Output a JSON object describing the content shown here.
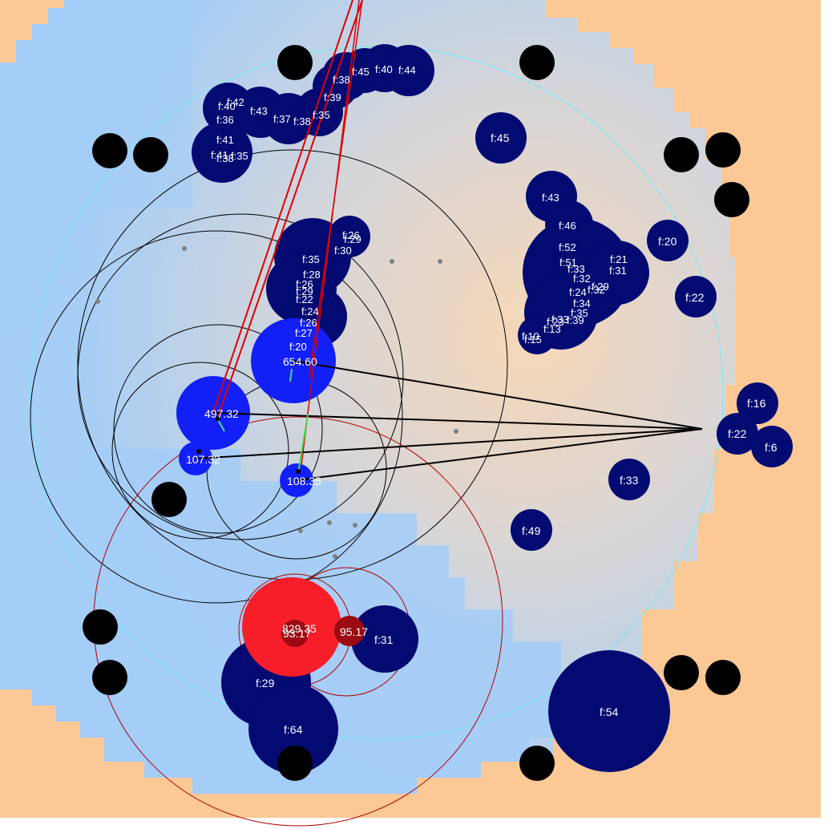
{
  "colors": {
    "background": "#fcc896",
    "map_light": "#a6cef7",
    "map_mid": "#c9d5e6",
    "boundary": "#7ee8f0",
    "food": "#030a72",
    "player": "#1220f7",
    "enemy": "#f71e2a",
    "enemy_small": "#9a0a10",
    "virus": "#000000",
    "pellet": "#808080"
  },
  "food": [
    {
      "label": "f:42"
    },
    {
      "label": "f:40"
    },
    {
      "label": "f:36"
    },
    {
      "label": "f:43"
    },
    {
      "label": "f:37"
    },
    {
      "label": "f:38"
    },
    {
      "label": "f:35"
    },
    {
      "label": "f:39"
    },
    {
      "label": "f:38"
    },
    {
      "label": "f:45"
    },
    {
      "label": "f:40"
    },
    {
      "label": "f:44"
    },
    {
      "label": "f:41"
    },
    {
      "label": "f:41"
    },
    {
      "label": "f:35"
    },
    {
      "label": "f:38"
    },
    {
      "label": "f:45"
    },
    {
      "label": "f:43"
    },
    {
      "label": "f:46"
    },
    {
      "label": "f:52"
    },
    {
      "label": "f:51"
    },
    {
      "label": "f:21"
    },
    {
      "label": "f:31"
    },
    {
      "label": "f:33"
    },
    {
      "label": "f:32"
    },
    {
      "label": "f:29"
    },
    {
      "label": "f:32"
    },
    {
      "label": "f:24"
    },
    {
      "label": "f:34"
    },
    {
      "label": "f:35"
    },
    {
      "label": "f:33"
    },
    {
      "label": "f:39"
    },
    {
      "label": "f:23"
    },
    {
      "label": "f:13"
    },
    {
      "label": "f:10"
    },
    {
      "label": "f:15"
    },
    {
      "label": "f:20"
    },
    {
      "label": "f:22"
    },
    {
      "label": "f:26"
    },
    {
      "label": "f:29"
    },
    {
      "label": "f:30"
    },
    {
      "label": "f:35"
    },
    {
      "label": "f:28"
    },
    {
      "label": "f:26"
    },
    {
      "label": "f:29"
    },
    {
      "label": "f:22"
    },
    {
      "label": "f:24"
    },
    {
      "label": "f:26"
    },
    {
      "label": "f:27"
    },
    {
      "label": "f:20"
    },
    {
      "label": "f:16"
    },
    {
      "label": "f:22"
    },
    {
      "label": "f:6"
    },
    {
      "label": "f:33"
    },
    {
      "label": "f:49"
    },
    {
      "label": "f:31"
    },
    {
      "label": "f:29"
    },
    {
      "label": "f:64"
    },
    {
      "label": "f:54"
    }
  ],
  "player_cells": [
    {
      "label": "654.60"
    },
    {
      "label": "497.32"
    },
    {
      "label": "107.32"
    },
    {
      "label": "108.35"
    }
  ],
  "enemy_cells": [
    {
      "label": "829.35"
    },
    {
      "label": "93.17"
    },
    {
      "label": "95.17"
    }
  ],
  "viruses_count": 20
}
